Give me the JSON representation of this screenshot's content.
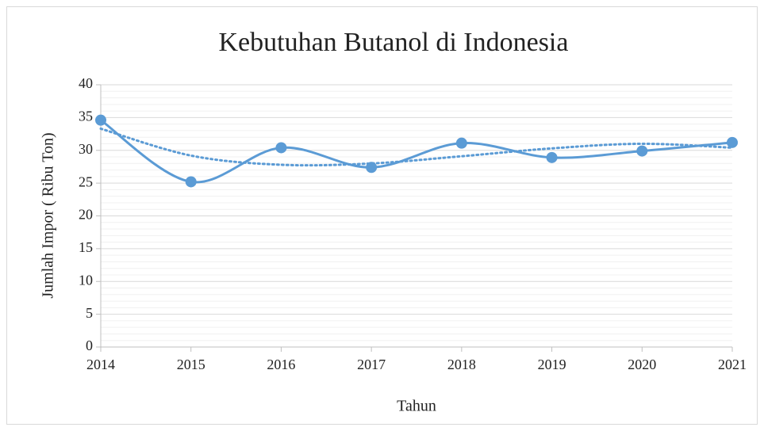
{
  "chart_data": {
    "type": "line",
    "title": "Kebutuhan Butanol di Indonesia",
    "x_label": "Tahun",
    "y_label": "Jumlah Impor ( Ribu Ton)",
    "x": [
      2014,
      2015,
      2016,
      2017,
      2018,
      2019,
      2020,
      2021
    ],
    "series": [
      {
        "color": "#5b9bd5",
        "style": "solid",
        "markers": true,
        "values": [
          34.6,
          25.2,
          30.4,
          27.4,
          31.1,
          28.9,
          29.9,
          31.2
        ]
      },
      {
        "color": "#5b9bd5",
        "style": "dotted",
        "markers": false,
        "values": [
          33.3,
          29.2,
          27.8,
          28.0,
          29.1,
          30.3,
          31.0,
          30.4
        ]
      }
    ],
    "xlim": [
      2014,
      2021
    ],
    "xticks": [
      2014,
      2015,
      2016,
      2017,
      2018,
      2019,
      2020,
      2021
    ],
    "ylim": [
      0,
      40
    ],
    "yticks": [
      0,
      5,
      10,
      15,
      20,
      25,
      30,
      35,
      40
    ],
    "grid": true,
    "minor_grid": true
  }
}
